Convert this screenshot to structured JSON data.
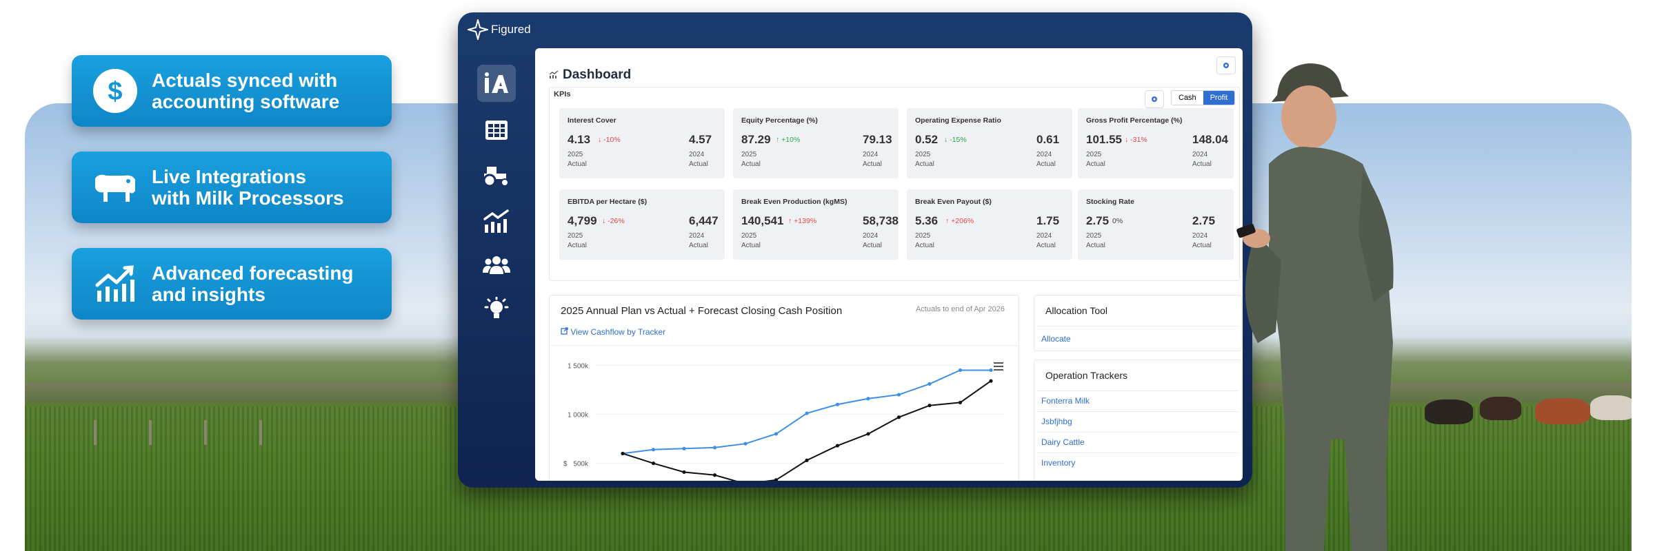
{
  "features": [
    {
      "label_line1": "Actuals synced with",
      "label_line2": "accounting software",
      "icon": "dollar-circle-icon"
    },
    {
      "label_line1": "Live Integrations",
      "label_line2": "with Milk Processors",
      "icon": "cow-icon"
    },
    {
      "label_line1": "Advanced forecasting",
      "label_line2": "and insights",
      "icon": "chart-trend-icon"
    }
  ],
  "app": {
    "brand": "Figured",
    "nav": [
      "home-icon",
      "table-icon",
      "tractor-icon",
      "chart-icon",
      "people-icon",
      "lightbulb-icon"
    ]
  },
  "dashboard": {
    "title": "Dashboard",
    "kpis_label": "KPIs",
    "toggle": {
      "cash": "Cash",
      "profit": "Profit",
      "selected": "Profit"
    },
    "kpis": [
      {
        "title": "Interest Cover",
        "value": "4.13",
        "change": "-10%",
        "dir": "down",
        "year1": "2025",
        "label1": "Actual",
        "prev": "4.57",
        "year2": "2024",
        "label2": "Actual"
      },
      {
        "title": "Equity Percentage (%)",
        "value": "87.29",
        "change": "+10%",
        "dir": "up",
        "year1": "2025",
        "label1": "Actual",
        "prev": "79.13",
        "year2": "2024",
        "label2": "Actual"
      },
      {
        "title": "Operating Expense Ratio",
        "value": "0.52",
        "change": "-15%",
        "dir": "down-good",
        "year1": "2025",
        "label1": "Actual",
        "prev": "0.61",
        "year2": "2024",
        "label2": "Actual"
      },
      {
        "title": "Gross Profit Percentage (%)",
        "value": "101.55",
        "change": "-31%",
        "dir": "down",
        "year1": "2025",
        "label1": "Actual",
        "prev": "148.04",
        "year2": "2024",
        "label2": "Actual"
      },
      {
        "title": "EBITDA per Hectare ($)",
        "value": "4,799",
        "change": "-26%",
        "dir": "down",
        "year1": "2025",
        "label1": "Actual",
        "prev": "6,447",
        "year2": "2024",
        "label2": "Actual"
      },
      {
        "title": "Break Even Production (kgMS)",
        "value": "140,541",
        "change": "+139%",
        "dir": "up-bad",
        "year1": "2025",
        "label1": "Actual",
        "prev": "58,738",
        "year2": "2024",
        "label2": "Actual"
      },
      {
        "title": "Break Even Payout ($)",
        "value": "5.36",
        "change": "+206%",
        "dir": "up-bad",
        "year1": "2025",
        "label1": "Actual",
        "prev": "1.75",
        "year2": "2024",
        "label2": "Actual"
      },
      {
        "title": "Stocking Rate",
        "value": "2.75",
        "change": "0%",
        "dir": "neutral",
        "year1": "2025",
        "label1": "Actual",
        "prev": "2.75",
        "year2": "2024",
        "label2": "Actual"
      }
    ]
  },
  "chart": {
    "title": "2025 Annual Plan vs Actual + Forecast Closing Cash Position",
    "subtitle": "Actuals to end of Apr 2026",
    "link": "View Cashflow by Tracker"
  },
  "chart_data": {
    "type": "line",
    "ylabels": [
      "1 500k",
      "1 000k",
      "500k"
    ],
    "ycurrency": "$",
    "ylim": [
      350000,
      1650000
    ],
    "series": [
      {
        "values": [
          600000,
          640000,
          650000,
          660000,
          700000,
          800000,
          1010000,
          1100000,
          1160000,
          1200000,
          1310000,
          1450000,
          1450000
        ],
        "color": "#3d8fe6"
      },
      {
        "values": [
          600000,
          500000,
          410000,
          380000,
          290000,
          330000,
          530000,
          680000,
          800000,
          970000,
          1090000,
          1120000,
          1340000
        ],
        "color": "#111111"
      }
    ]
  },
  "allocation": {
    "title": "Allocation Tool",
    "link": "Allocate"
  },
  "trackers": {
    "title": "Operation Trackers",
    "items": [
      "Fonterra Milk",
      "Jsbfjhbg",
      "Dairy Cattle",
      "Inventory"
    ]
  }
}
